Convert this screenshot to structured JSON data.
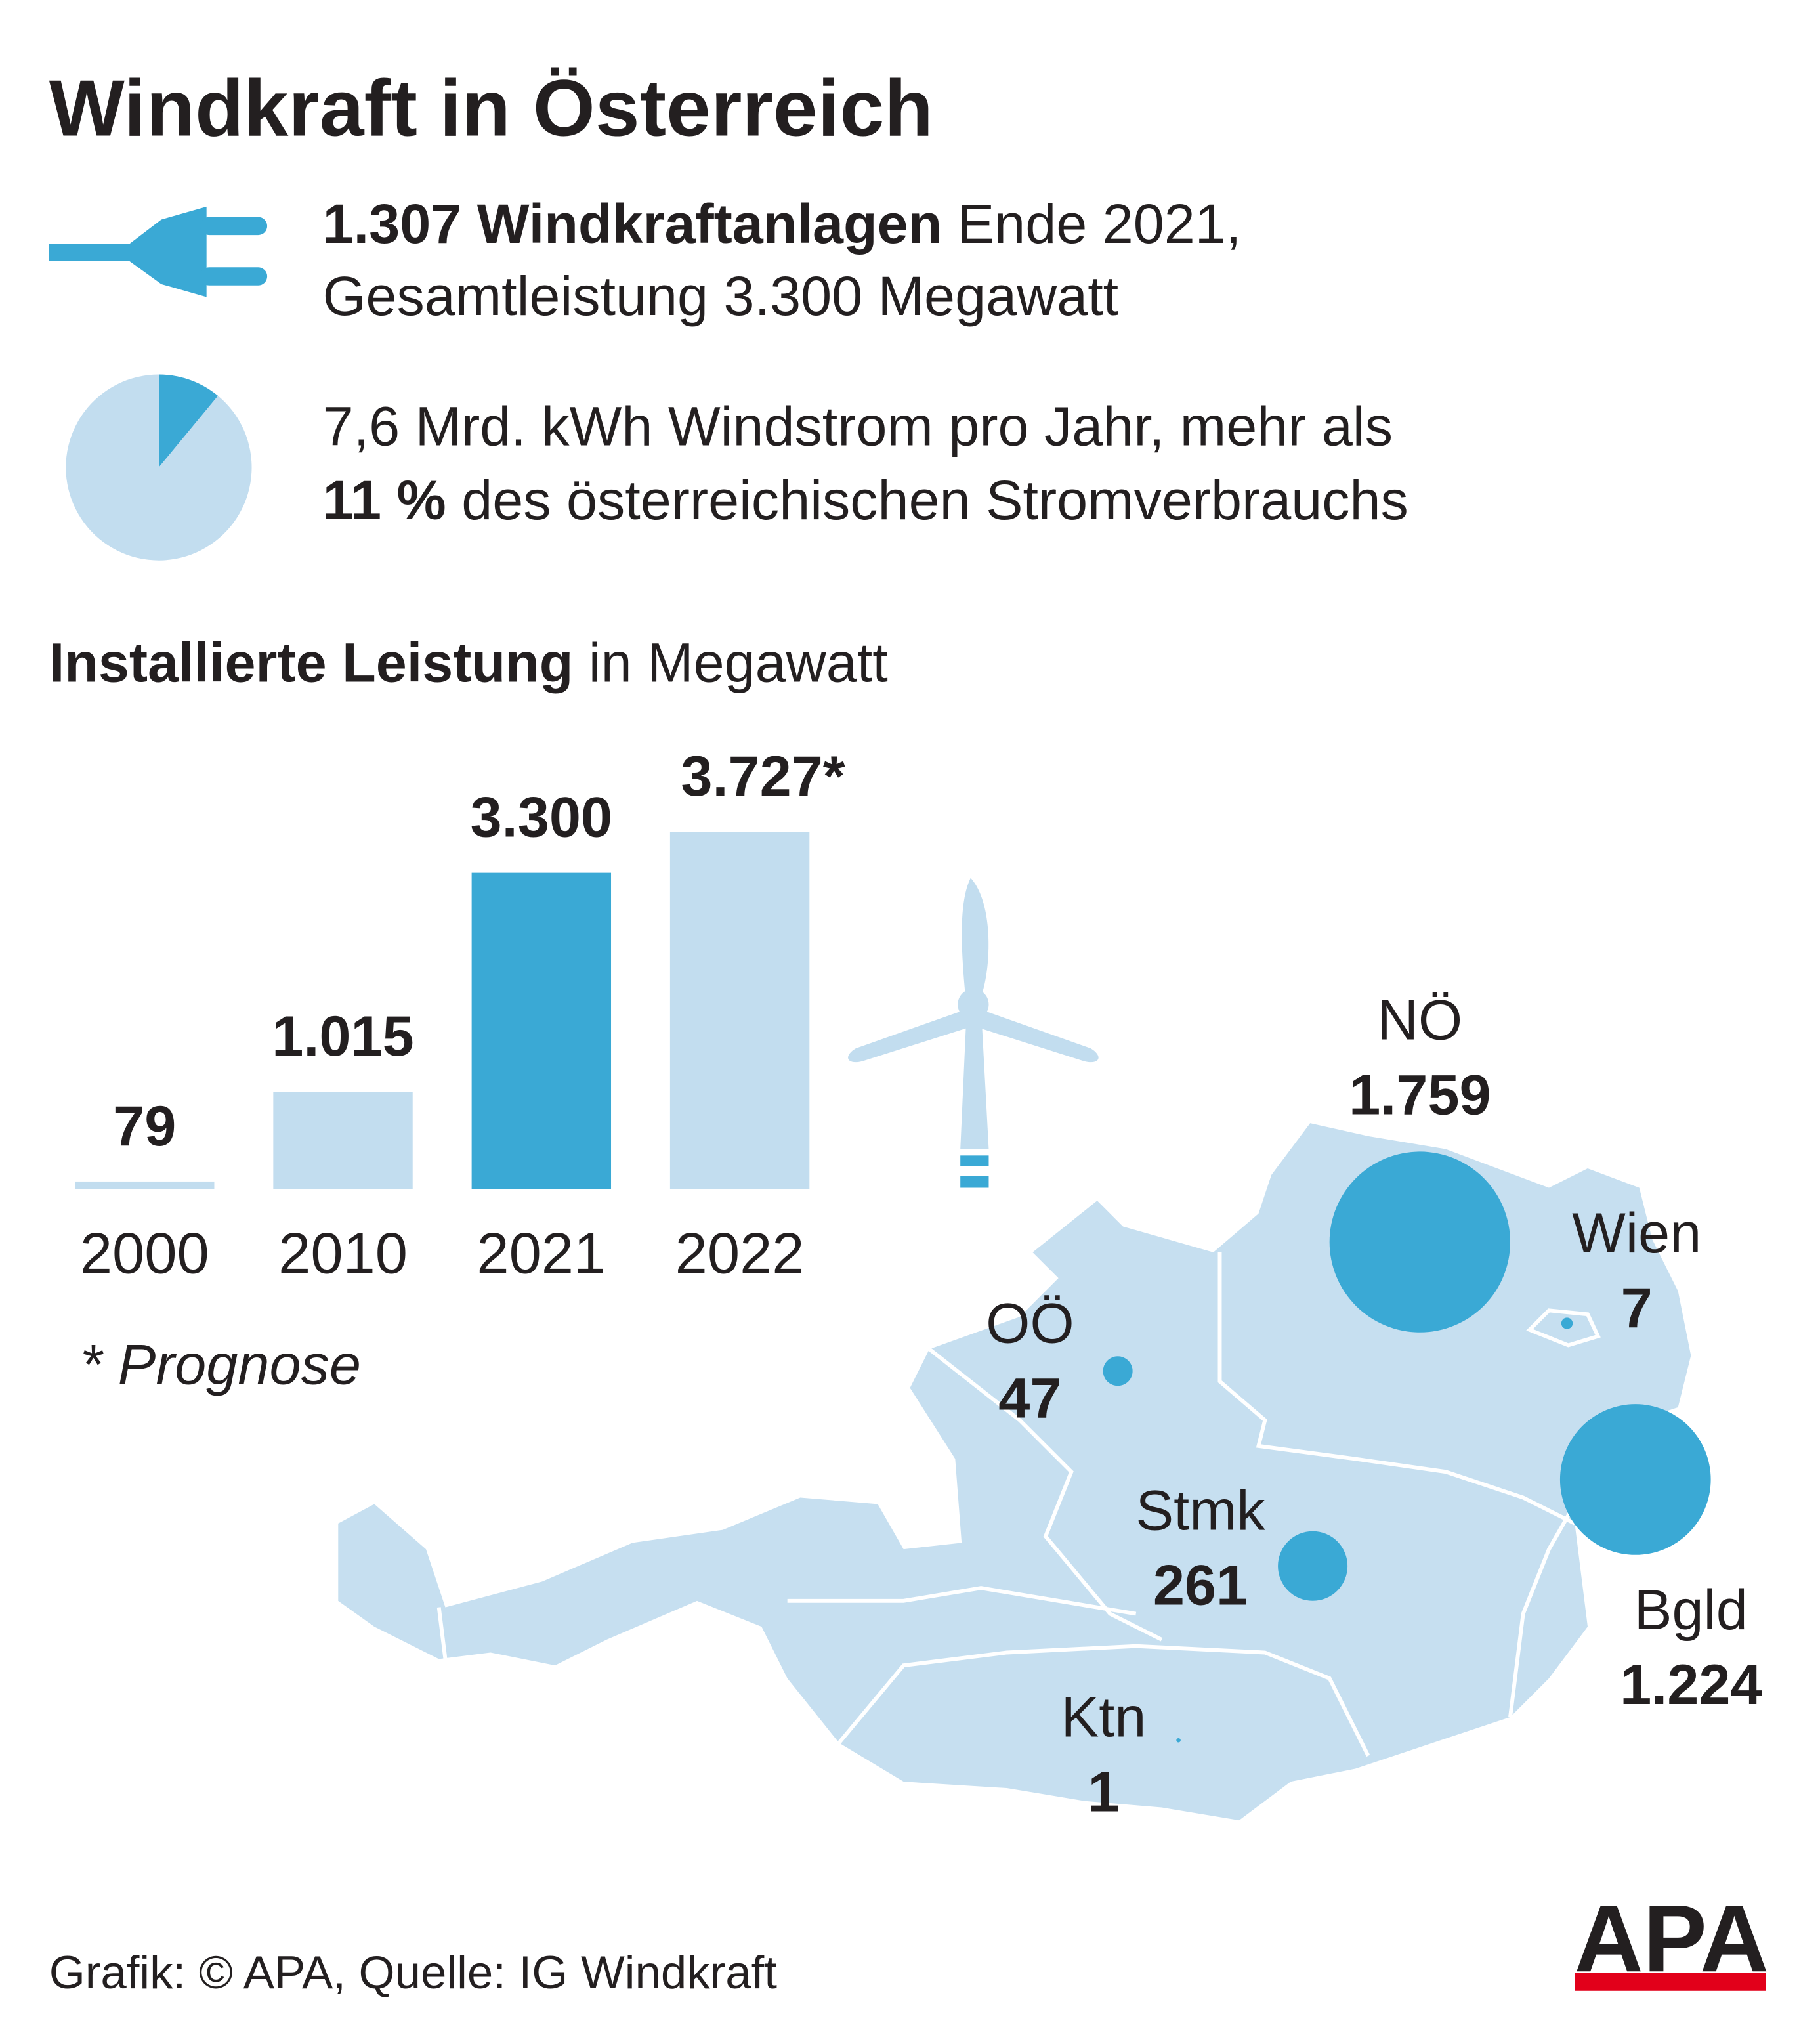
{
  "title": "Windkraft in Österreich",
  "facts": [
    {
      "bold": "1.307 Windkraftanlagen",
      "text": " Ende 2021,",
      "line2": "Gesamtleistung 3.300 Megawatt"
    },
    {
      "line1": "7,6 Mrd. kWh Windstrom pro Jahr, mehr als",
      "bold": "11 %",
      "text": " des österreichischen Stromverbrauchs"
    }
  ],
  "chart_data": [
    {
      "type": "pie",
      "values": [
        11,
        89
      ],
      "colors": [
        "#3aa9d5",
        "#c2ddef"
      ]
    },
    {
      "type": "bar",
      "title": "Installierte Leistung",
      "subtitle": " in Megawatt",
      "categories": [
        "2000",
        "2010",
        "2021",
        "2022"
      ],
      "values": [
        79,
        1015,
        3300,
        3727
      ],
      "value_labels": [
        "79",
        "1.015",
        "3.300",
        "3.727*"
      ],
      "colors": [
        "#c2ddef",
        "#c2ddef",
        "#3aa9d5",
        "#c2ddef"
      ],
      "note": "* Prognose"
    },
    {
      "type": "bubble",
      "categories": [
        "NÖ",
        "Wien",
        "OÖ",
        "Stmk",
        "Bgld",
        "Ktn"
      ],
      "values": [
        1759,
        7,
        47,
        261,
        1224,
        1
      ],
      "value_labels": [
        "1.759",
        "7",
        "47",
        "261",
        "1.224",
        "1"
      ],
      "color": "#3aa9d5"
    }
  ],
  "source": "Grafik: © APA, Quelle: IG Windkraft",
  "logo": "APA"
}
